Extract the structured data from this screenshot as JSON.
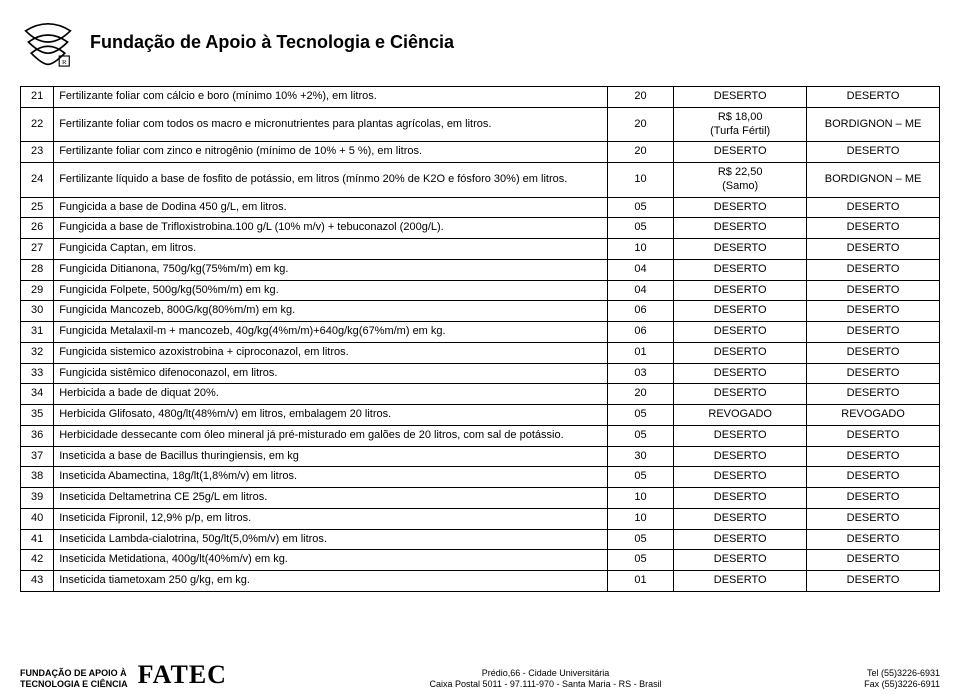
{
  "header": {
    "title": "Fundação de Apoio à Tecnologia e Ciência"
  },
  "table": {
    "rows": [
      {
        "n": "21",
        "desc": "Fertilizante foliar com cálcio e boro (mínimo 10% +2%), em litros.",
        "qty": "20",
        "price": "DESERTO",
        "sup": "DESERTO"
      },
      {
        "n": "22",
        "desc": "Fertilizante foliar com todos os macro e micronutrientes para plantas agrícolas, em litros.",
        "qty": "20",
        "price": "R$ 18,00\n(Turfa Fértil)",
        "sup": "BORDIGNON – ME"
      },
      {
        "n": "23",
        "desc": "Fertilizante foliar com zinco e nitrogênio (mínimo de 10% + 5 %), em litros.",
        "qty": "20",
        "price": "DESERTO",
        "sup": "DESERTO"
      },
      {
        "n": "24",
        "desc": "Fertilizante líquido a base de fosfito de potássio, em litros (mínmo 20% de K2O e fósforo 30%) em litros.",
        "qty": "10",
        "price": "R$ 22,50\n(Samo)",
        "sup": "BORDIGNON – ME"
      },
      {
        "n": "25",
        "desc": "Fungicida a  base de Dodina 450 g/L, em litros.",
        "qty": "05",
        "price": "DESERTO",
        "sup": "DESERTO"
      },
      {
        "n": "26",
        "desc": "Fungicida a base de Trifloxistrobina.100 g/L (10% m/v) + tebuconazol (200g/L).",
        "qty": "05",
        "price": "DESERTO",
        "sup": "DESERTO"
      },
      {
        "n": "27",
        "desc": "Fungicida Captan, em litros.",
        "qty": "10",
        "price": "DESERTO",
        "sup": "DESERTO"
      },
      {
        "n": "28",
        "desc": "Fungicida Ditianona, 750g/kg(75%m/m) em kg.",
        "qty": "04",
        "price": "DESERTO",
        "sup": "DESERTO"
      },
      {
        "n": "29",
        "desc": "Fungicida Folpete, 500g/kg(50%m/m) em kg.",
        "qty": "04",
        "price": "DESERTO",
        "sup": "DESERTO"
      },
      {
        "n": "30",
        "desc": "Fungicida Mancozeb, 800G/kg(80%m/m) em kg.",
        "qty": "06",
        "price": "DESERTO",
        "sup": "DESERTO"
      },
      {
        "n": "31",
        "desc": "Fungicida Metalaxil-m + mancozeb, 40g/kg(4%m/m)+640g/kg(67%m/m) em kg.",
        "qty": "06",
        "price": "DESERTO",
        "sup": "DESERTO"
      },
      {
        "n": "32",
        "desc": "Fungicida sistemico azoxistrobina + ciproconazol, em litros.",
        "qty": "01",
        "price": "DESERTO",
        "sup": "DESERTO"
      },
      {
        "n": "33",
        "desc": "Fungicida sistêmico difenoconazol, em litros.",
        "qty": "03",
        "price": "DESERTO",
        "sup": "DESERTO"
      },
      {
        "n": "34",
        "desc": "Herbicida a bade de diquat 20%.",
        "qty": "20",
        "price": "DESERTO",
        "sup": "DESERTO"
      },
      {
        "n": "35",
        "desc": "Herbicida Glifosato, 480g/lt(48%m/v) em litros, embalagem 20 litros.",
        "qty": "05",
        "price": "REVOGADO",
        "sup": "REVOGADO"
      },
      {
        "n": "36",
        "desc": "Herbicidade dessecante com óleo mineral já pré-misturado em galões de 20 litros, com sal de potássio.",
        "qty": "05",
        "price": "DESERTO",
        "sup": "DESERTO"
      },
      {
        "n": "37",
        "desc": "Inseticida a base de Bacillus thuringiensis, em kg",
        "qty": "30",
        "price": "DESERTO",
        "sup": "DESERTO"
      },
      {
        "n": "38",
        "desc": "Inseticida Abamectina, 18g/lt(1,8%m/v) em litros.",
        "qty": "05",
        "price": "DESERTO",
        "sup": "DESERTO"
      },
      {
        "n": "39",
        "desc": "Inseticida Deltametrina CE 25g/L em litros.",
        "qty": "10",
        "price": "DESERTO",
        "sup": "DESERTO"
      },
      {
        "n": "40",
        "desc": "Inseticida Fipronil, 12,9% p/p, em litros.",
        "qty": "10",
        "price": "DESERTO",
        "sup": "DESERTO"
      },
      {
        "n": "41",
        "desc": "Inseticida Lambda-cialotrina, 50g/lt(5,0%m/v) em litros.",
        "qty": "05",
        "price": "DESERTO",
        "sup": "DESERTO"
      },
      {
        "n": "42",
        "desc": "Inseticida Metidationa, 400g/lt(40%m/v) em kg.",
        "qty": "05",
        "price": "DESERTO",
        "sup": "DESERTO"
      },
      {
        "n": "43",
        "desc": "Inseticida tiametoxam 250 g/kg, em kg.",
        "qty": "01",
        "price": "DESERTO",
        "sup": "DESERTO"
      }
    ]
  },
  "footer": {
    "org_line1": "FUNDAÇÃO DE APOIO À",
    "org_line2": "TECNOLOGIA E CIÊNCIA",
    "brand": "FATEC",
    "addr_line1": "Prédio,66 - Cidade Universitária",
    "addr_line2": "Caixa Postal 5011 - 97.111-970 - Santa Maria - RS - Brasil",
    "tel": "Tel (55)3226-6931",
    "fax": "Fax (55)3226-6911"
  },
  "style": {
    "text_color": "#000000",
    "background": "#ffffff",
    "border_color": "#000000",
    "title_fontsize": 18,
    "body_fontsize": 11,
    "footer_fontsize": 9
  }
}
